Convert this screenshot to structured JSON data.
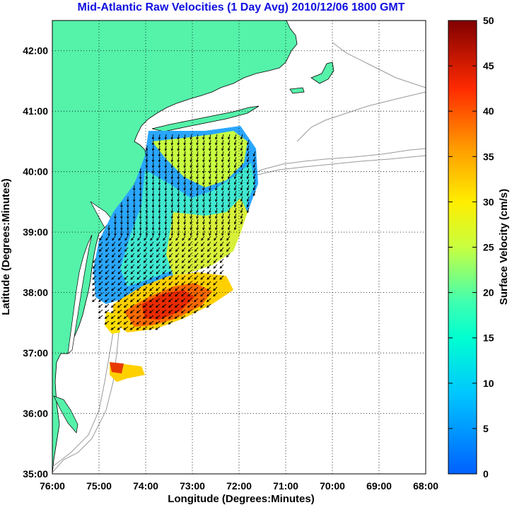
{
  "title": "Mid-Atlantic Raw Velocities (1 Day Avg) 2010/12/06 1800 GMT",
  "xlabel": "Longitude (Degrees:Minutes)",
  "ylabel": "Latitude (Degrees:Minutes)",
  "colorbar_label": "Surface Velocity (cm/s)",
  "x_ticks": [
    "76:00",
    "75:00",
    "74:00",
    "73:00",
    "72:00",
    "71:00",
    "70:00",
    "69:00",
    "68:00"
  ],
  "y_ticks": [
    "35:00",
    "36:00",
    "37:00",
    "38:00",
    "39:00",
    "40:00",
    "41:00",
    "42:00"
  ],
  "colorbar_ticks": [
    "0",
    "5",
    "10",
    "15",
    "20",
    "25",
    "30",
    "35",
    "40",
    "45",
    "50"
  ],
  "colors": {
    "land": "#55f2aa",
    "ocean": "#ffffff",
    "grid": "#000000",
    "title": "#1010e0",
    "bathymetry": "#999999",
    "arrows": "#000000"
  },
  "map": {
    "lon_range": [
      -76,
      -68
    ],
    "lat_range": [
      35,
      42.5
    ],
    "grid": "dotted",
    "colorbar_range": [
      0,
      50
    ],
    "colormap": "jet"
  }
}
